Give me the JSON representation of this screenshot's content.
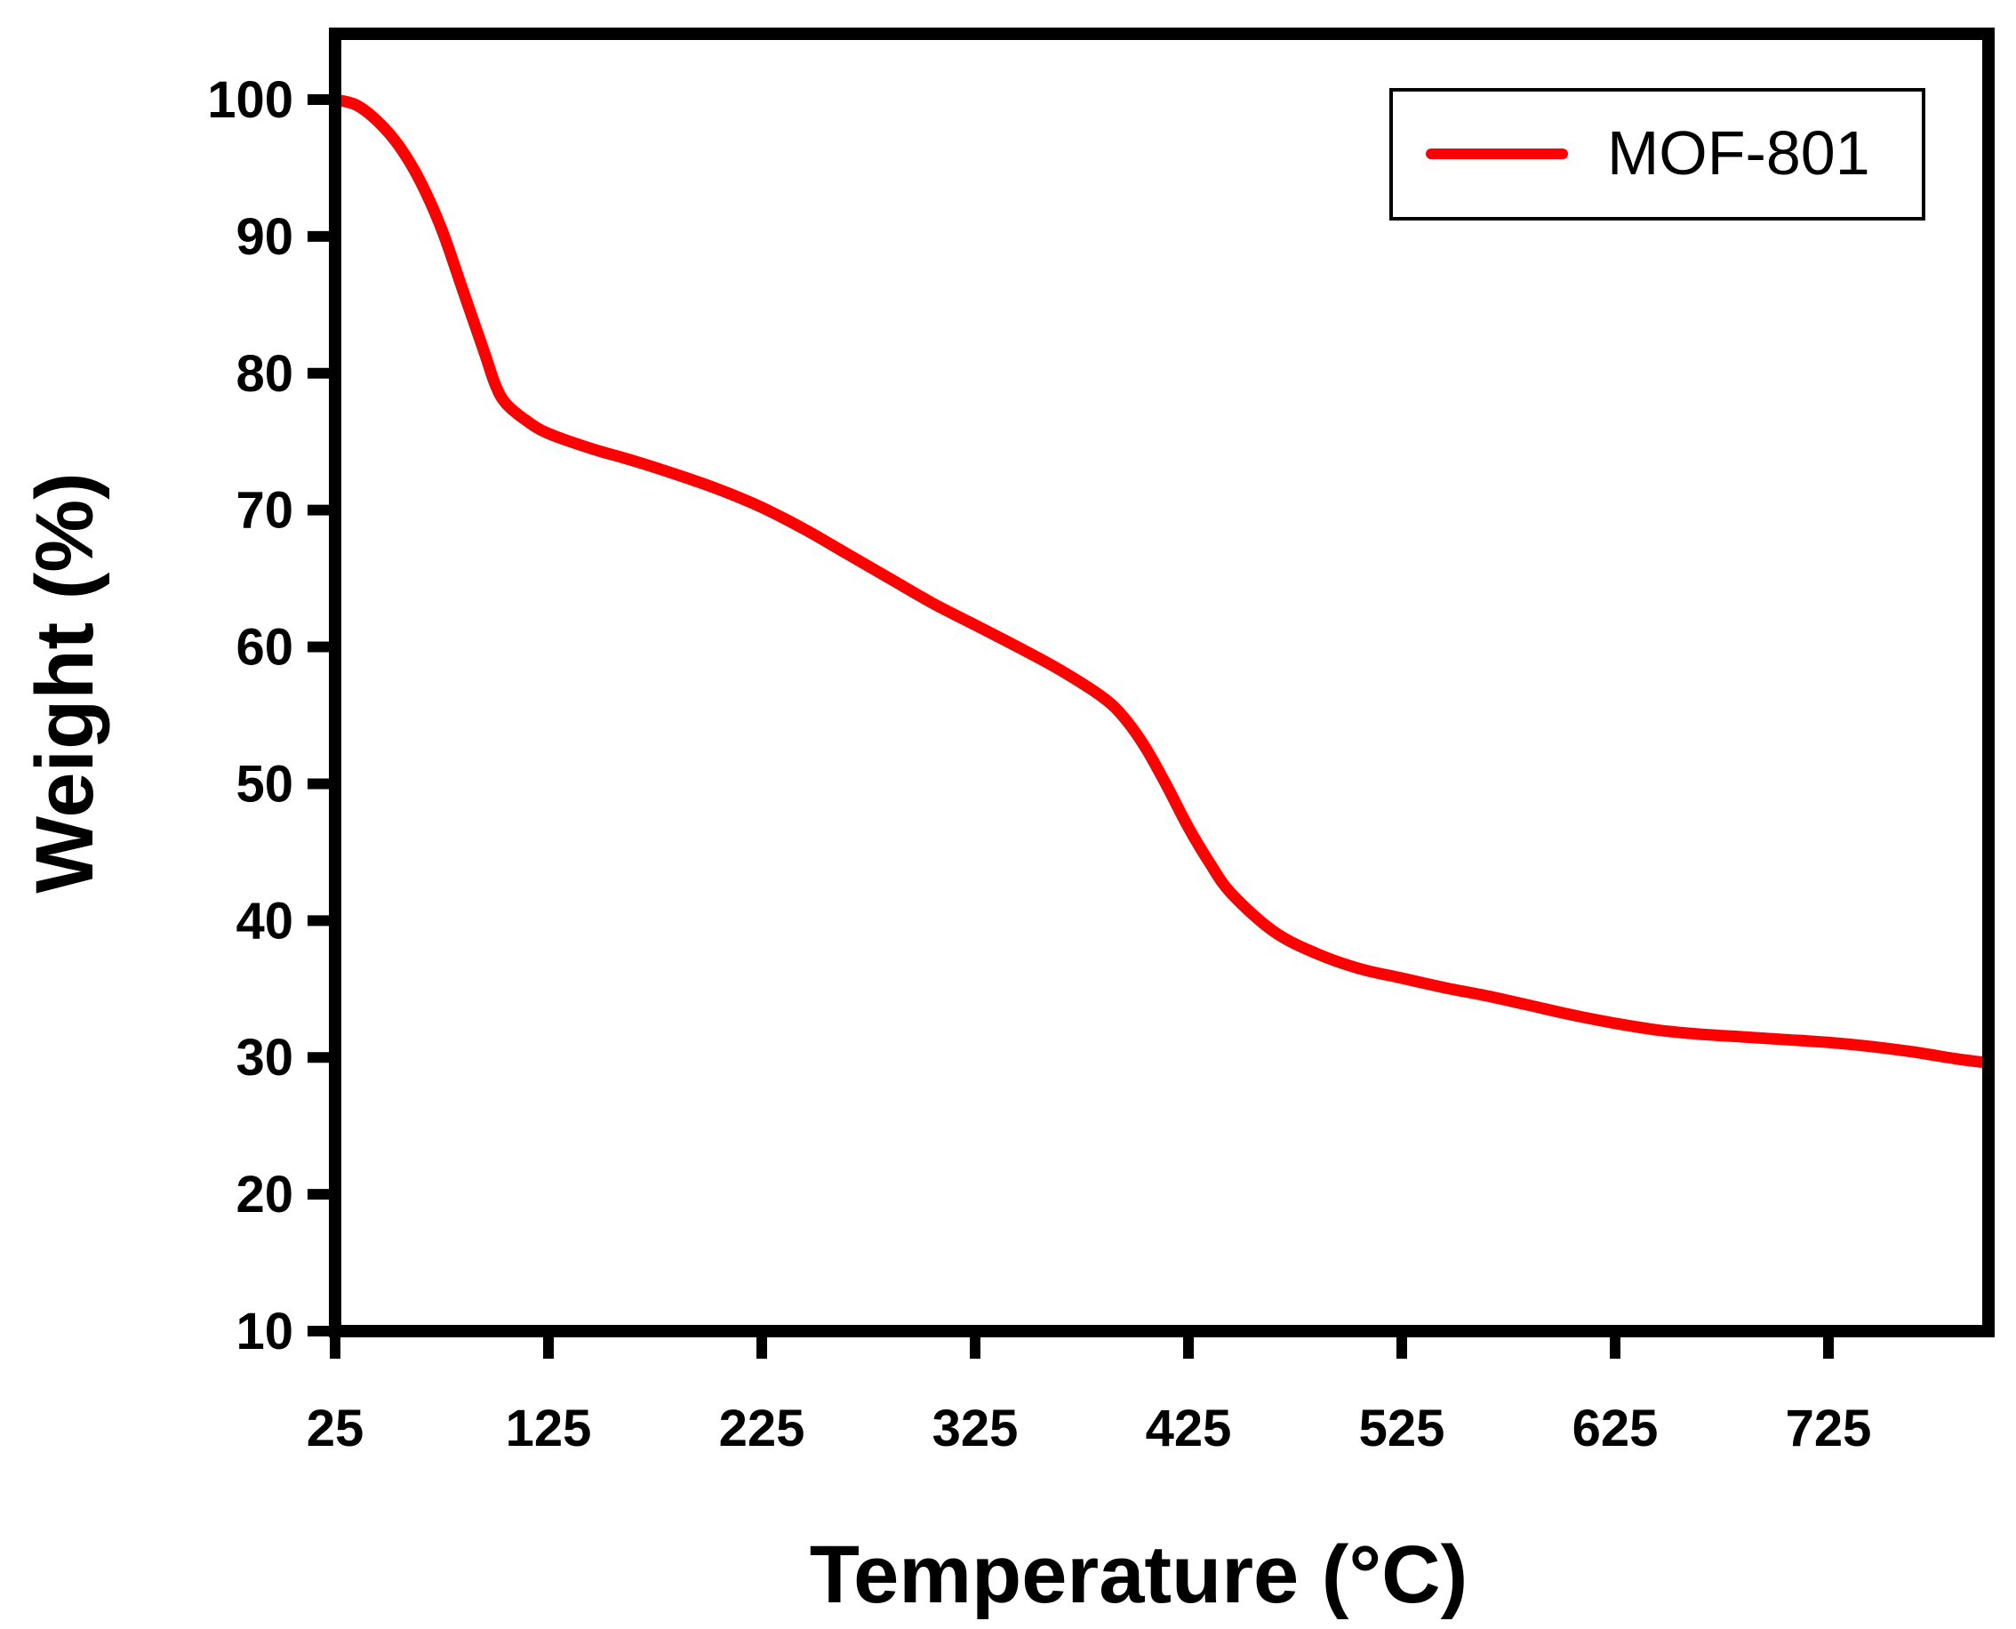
{
  "chart_data": {
    "type": "line",
    "xlabel": "Temperature (°C)",
    "ylabel": "Weight (%)",
    "xlim": [
      25,
      800
    ],
    "ylim": [
      10,
      100
    ],
    "xticks": [
      25,
      125,
      225,
      325,
      425,
      525,
      625,
      725
    ],
    "yticks": [
      10,
      20,
      30,
      40,
      50,
      60,
      70,
      80,
      90,
      100
    ],
    "grid": false,
    "legend_position": "top-right",
    "series": [
      {
        "name": "MOF-801",
        "color": "#ff0000",
        "x": [
          25,
          35,
          45,
          55,
          65,
          75,
          85,
          95,
          100,
          105,
          115,
          125,
          145,
          165,
          185,
          205,
          225,
          245,
          265,
          285,
          305,
          325,
          345,
          365,
          385,
          395,
          405,
          415,
          425,
          435,
          445,
          465,
          485,
          505,
          525,
          545,
          565,
          585,
          605,
          625,
          645,
          665,
          685,
          705,
          725,
          745,
          765,
          785,
          800
        ],
        "y": [
          100,
          99.6,
          98.4,
          96.6,
          94.0,
          90.5,
          86.0,
          81.5,
          79.2,
          77.8,
          76.5,
          75.6,
          74.5,
          73.6,
          72.6,
          71.5,
          70.2,
          68.6,
          66.8,
          65.0,
          63.2,
          61.6,
          60.0,
          58.3,
          56.3,
          54.8,
          52.6,
          49.8,
          46.8,
          44.2,
          42.0,
          39.2,
          37.6,
          36.5,
          35.8,
          35.1,
          34.5,
          33.8,
          33.1,
          32.5,
          32.0,
          31.7,
          31.5,
          31.3,
          31.1,
          30.8,
          30.4,
          29.9,
          29.6
        ]
      }
    ]
  }
}
